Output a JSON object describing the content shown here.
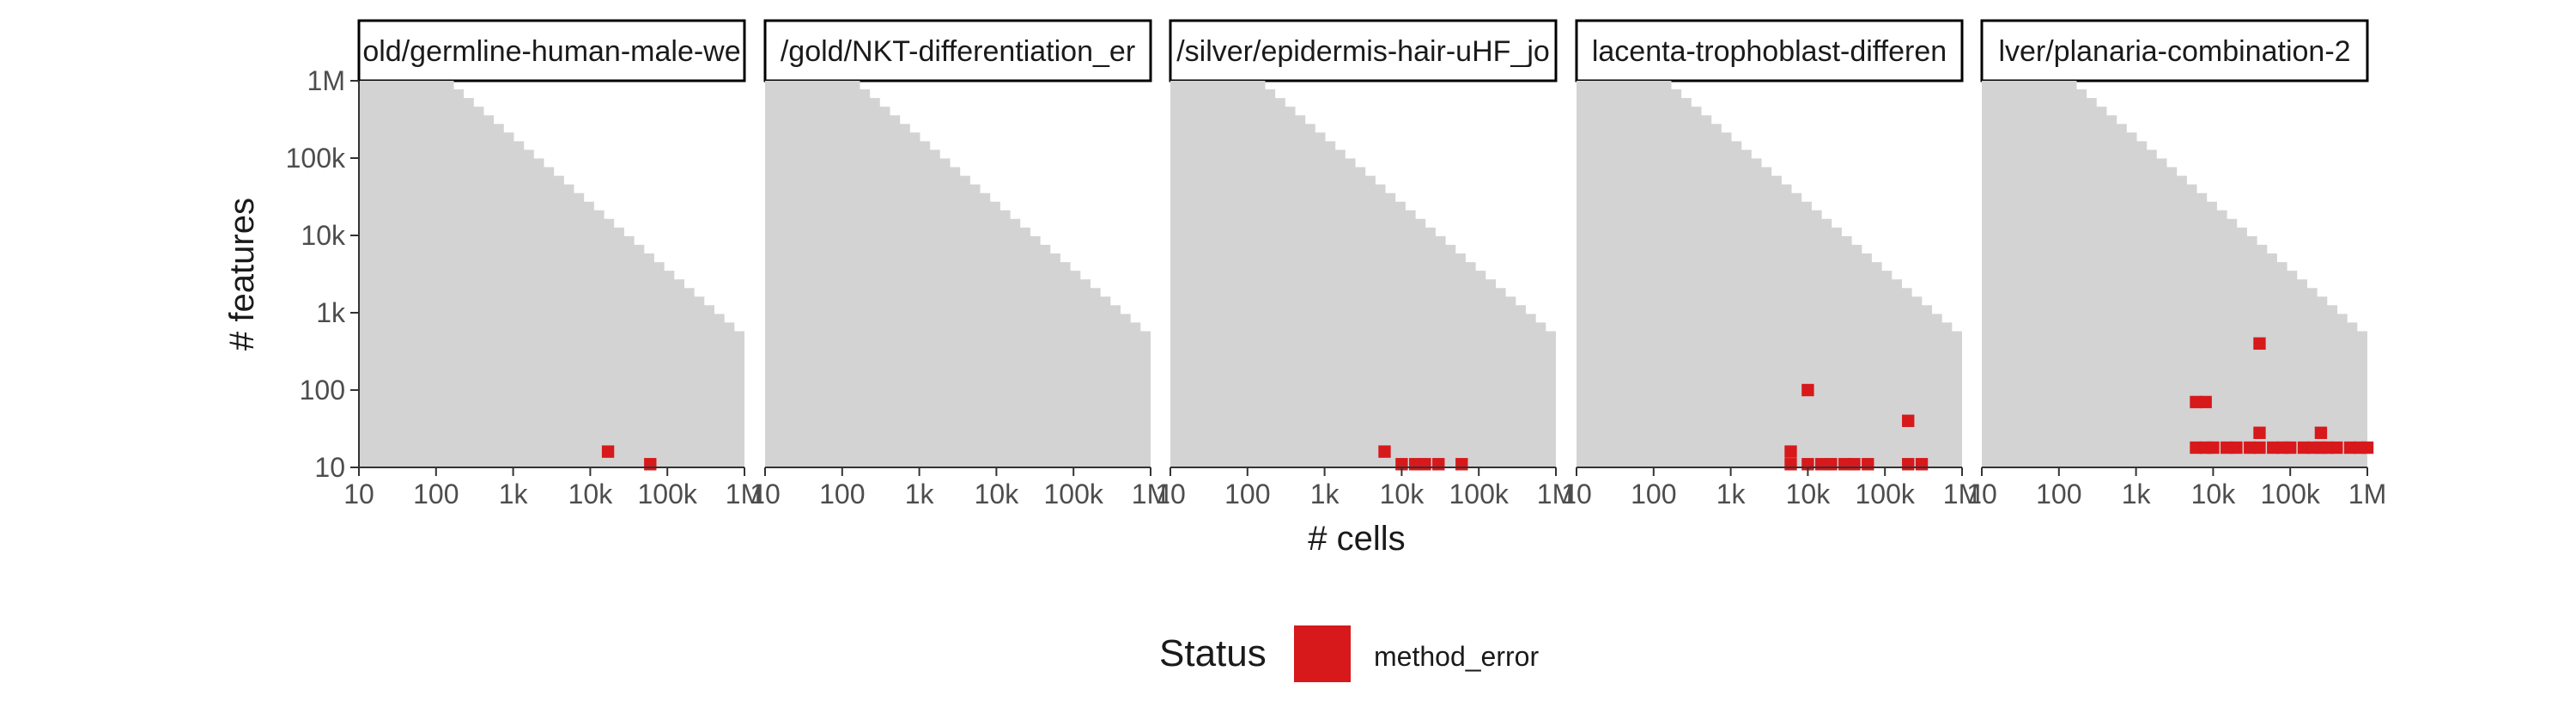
{
  "chart_data": {
    "type": "heatmap",
    "xlabel": "# cells",
    "ylabel": "# features",
    "x_scale": "log10",
    "y_scale": "log10",
    "xlim": [
      10,
      1000000
    ],
    "ylim": [
      10,
      1000000
    ],
    "x_ticks": [
      {
        "value": 10,
        "label": "10"
      },
      {
        "value": 100,
        "label": "100"
      },
      {
        "value": 1000,
        "label": "1k"
      },
      {
        "value": 10000,
        "label": "10k"
      },
      {
        "value": 100000,
        "label": "100k"
      },
      {
        "value": 1000000,
        "label": "1M"
      }
    ],
    "y_ticks": [
      {
        "value": 10,
        "label": "10"
      },
      {
        "value": 100,
        "label": "100"
      },
      {
        "value": 1000,
        "label": "1k"
      },
      {
        "value": 10000,
        "label": "10k"
      },
      {
        "value": 100000,
        "label": "100k"
      },
      {
        "value": 1000000,
        "label": "1M"
      }
    ],
    "colors": {
      "feasible_region": "#d3d3d3",
      "method_error": "#d7191c",
      "strip_border": "#000000",
      "axis": "#333333",
      "text": "#1a1a1a"
    },
    "legend": {
      "title": "Status",
      "position": "bottom",
      "entries": [
        {
          "label": "method_error",
          "color": "#d7191c"
        }
      ]
    },
    "feasible_region": {
      "description": "cells x features <= ~1e8 (upper-right triangle absent)"
    },
    "panels": [
      {
        "title": "old/germline-human-male-we",
        "method_error": [
          [
            17000,
            16
          ],
          [
            60000,
            11
          ]
        ]
      },
      {
        "title": "/gold/NKT-differentiation_er",
        "method_error": []
      },
      {
        "title": "/silver/epidermis-hair-uHF_jo",
        "method_error": [
          [
            6000,
            16
          ],
          [
            10000,
            11
          ],
          [
            15000,
            11
          ],
          [
            20000,
            11
          ],
          [
            30000,
            11
          ],
          [
            60000,
            11
          ]
        ]
      },
      {
        "title": "lacenta-trophoblast-differen",
        "method_error": [
          [
            6000,
            16
          ],
          [
            6000,
            11
          ],
          [
            10000,
            100
          ],
          [
            10000,
            11
          ],
          [
            15000,
            11
          ],
          [
            20000,
            11
          ],
          [
            30000,
            11
          ],
          [
            40000,
            11
          ],
          [
            60000,
            11
          ],
          [
            200000,
            40
          ],
          [
            200000,
            11
          ],
          [
            300000,
            11
          ]
        ]
      },
      {
        "title": "lver/planaria-combination-2",
        "method_error": [
          [
            40000,
            400
          ],
          [
            6000,
            70
          ],
          [
            8000,
            70
          ],
          [
            40000,
            28
          ],
          [
            250000,
            28
          ],
          [
            6000,
            18
          ],
          [
            8000,
            18
          ],
          [
            10000,
            18
          ],
          [
            15000,
            18
          ],
          [
            20000,
            18
          ],
          [
            30000,
            18
          ],
          [
            40000,
            18
          ],
          [
            60000,
            18
          ],
          [
            80000,
            18
          ],
          [
            100000,
            18
          ],
          [
            150000,
            18
          ],
          [
            200000,
            18
          ],
          [
            250000,
            18
          ],
          [
            300000,
            18
          ],
          [
            400000,
            18
          ],
          [
            600000,
            18
          ],
          [
            800000,
            18
          ],
          [
            1000000,
            18
          ]
        ]
      }
    ]
  }
}
